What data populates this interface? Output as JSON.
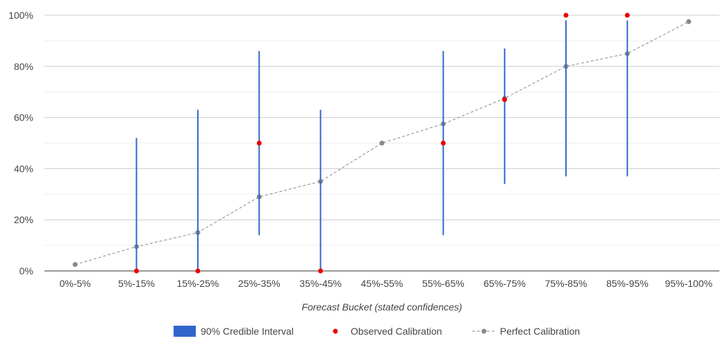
{
  "chart_data": {
    "type": "scatter",
    "title": "",
    "xlabel": "Forecast Bucket (stated confidences)",
    "ylabel": "",
    "ylim": [
      0,
      100
    ],
    "y_ticks": [
      "0%",
      "20%",
      "40%",
      "60%",
      "80%",
      "100%"
    ],
    "y_tick_values": [
      0,
      20,
      40,
      60,
      80,
      100
    ],
    "grid": true,
    "legend_position": "bottom",
    "categories": [
      "0%-5%",
      "5%-15%",
      "15%-25%",
      "25%-35%",
      "35%-45%",
      "45%-55%",
      "55%-65%",
      "65%-75%",
      "75%-85%",
      "85%-95%",
      "95%-100%"
    ],
    "series": [
      {
        "name": "90% Credible Interval",
        "kind": "interval",
        "color": "#3366cc",
        "low": [
          null,
          0,
          0,
          14,
          0,
          null,
          14,
          34,
          37,
          37,
          null
        ],
        "high": [
          null,
          52,
          63,
          86,
          63,
          null,
          86,
          87,
          98,
          98,
          null
        ]
      },
      {
        "name": "Observed Calibration",
        "kind": "points",
        "color": "#ee0000",
        "values": [
          null,
          0,
          0,
          50,
          0,
          null,
          50,
          67,
          100,
          100,
          null
        ]
      },
      {
        "name": "Perfect Calibration",
        "kind": "dashed-line",
        "color": "#888888",
        "values": [
          2.5,
          9.5,
          15,
          29,
          35,
          50,
          57.5,
          67.5,
          80,
          85,
          97.5
        ]
      }
    ]
  }
}
